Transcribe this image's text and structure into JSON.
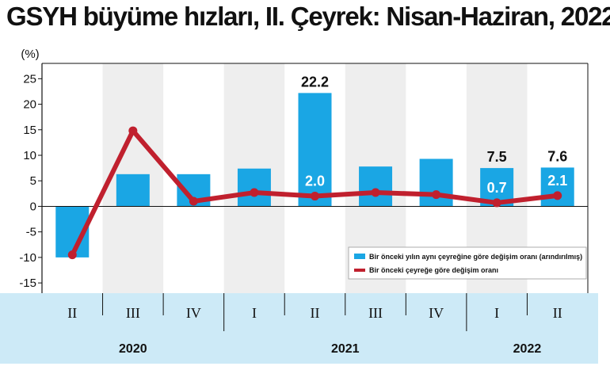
{
  "title": "GSYH büyüme hızları, II. Çeyrek: Nisan-Haziran, 2022",
  "colors": {
    "bar": "#1aa6e4",
    "line": "#c0202e",
    "band": "#eeeeee",
    "lower_panel": "#cdeaf7"
  },
  "chart_data": {
    "type": "bar",
    "ylabel": "(%)",
    "ylim": [
      -17,
      28
    ],
    "yticks": [
      -15,
      -10,
      -5,
      0,
      5,
      10,
      15,
      20,
      25
    ],
    "categories": [
      "II",
      "III",
      "IV",
      "I",
      "II",
      "III",
      "IV",
      "I",
      "II"
    ],
    "years": [
      {
        "label": "2020",
        "start": 0,
        "end": 2
      },
      {
        "label": "2021",
        "start": 3,
        "end": 6
      },
      {
        "label": "2022",
        "start": 7,
        "end": 8
      }
    ],
    "shaded_categories": [
      1,
      3,
      5,
      7
    ],
    "series": [
      {
        "name": "Bir önceki yılın aynı çeyreğine göre değişim oranı (arındırılmış)",
        "type": "bar",
        "values": [
          -10.0,
          6.3,
          6.3,
          7.4,
          22.2,
          7.8,
          9.3,
          7.5,
          7.6
        ]
      },
      {
        "name": "Bir önceki çeyreğe göre değişim oranı",
        "type": "line",
        "values": [
          -9.5,
          14.8,
          1.0,
          2.7,
          2.0,
          2.7,
          2.3,
          0.7,
          2.1
        ]
      }
    ],
    "data_labels": [
      {
        "series": 0,
        "index": 4,
        "text": "22.2",
        "position": "above"
      },
      {
        "series": 0,
        "index": 7,
        "text": "7.5",
        "position": "above"
      },
      {
        "series": 0,
        "index": 8,
        "text": "7.6",
        "position": "above"
      },
      {
        "series": 1,
        "index": 4,
        "text": "2.0",
        "position": "inside"
      },
      {
        "series": 1,
        "index": 7,
        "text": "0.7",
        "position": "inside"
      },
      {
        "series": 1,
        "index": 8,
        "text": "2.1",
        "position": "inside"
      }
    ],
    "legend_position": "bottom-right",
    "grid": false
  }
}
